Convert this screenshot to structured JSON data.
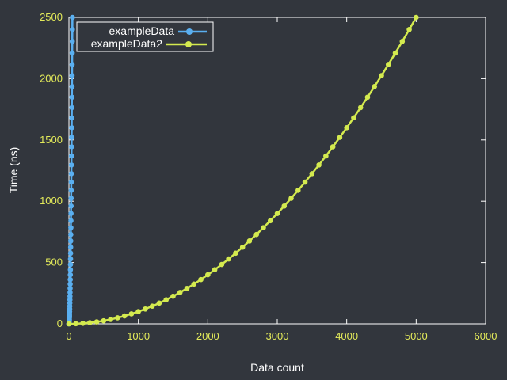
{
  "chart_data": {
    "type": "line",
    "xlabel": "Data count",
    "ylabel": "Time (ns)",
    "xlim": [
      0,
      6000
    ],
    "ylim": [
      0,
      2500
    ],
    "xticks": [
      0,
      1000,
      2000,
      3000,
      4000,
      5000,
      6000
    ],
    "yticks": [
      0,
      500,
      1000,
      1500,
      2000,
      2500
    ],
    "grid": false,
    "legend_position": "top-left",
    "series": [
      {
        "name": "exampleData",
        "color": "#5aaff0",
        "x": [
          0,
          1,
          2,
          3,
          4,
          5,
          6,
          7,
          8,
          9,
          10,
          11,
          12,
          13,
          14,
          15,
          16,
          17,
          18,
          19,
          20,
          21,
          22,
          23,
          24,
          25,
          26,
          27,
          28,
          29,
          30,
          31,
          32,
          33,
          34,
          35,
          36,
          37,
          38,
          39,
          40,
          41,
          42,
          43,
          44,
          45,
          46,
          47,
          48,
          49,
          50
        ],
        "y": [
          0,
          1,
          4,
          9,
          16,
          25,
          36,
          49,
          64,
          81,
          100,
          121,
          144,
          169,
          196,
          225,
          256,
          289,
          324,
          361,
          400,
          441,
          484,
          529,
          576,
          625,
          676,
          729,
          784,
          841,
          900,
          961,
          1024,
          1089,
          1156,
          1225,
          1296,
          1369,
          1444,
          1521,
          1600,
          1681,
          1764,
          1849,
          1936,
          2025,
          2116,
          2209,
          2304,
          2401,
          2500
        ]
      },
      {
        "name": "exampleData2",
        "color": "#d4ea4f",
        "x": [
          0,
          100,
          200,
          300,
          400,
          500,
          600,
          700,
          800,
          900,
          1000,
          1100,
          1200,
          1300,
          1400,
          1500,
          1600,
          1700,
          1800,
          1900,
          2000,
          2100,
          2200,
          2300,
          2400,
          2500,
          2600,
          2700,
          2800,
          2900,
          3000,
          3100,
          3200,
          3300,
          3400,
          3500,
          3600,
          3700,
          3800,
          3900,
          4000,
          4100,
          4200,
          4300,
          4400,
          4500,
          4600,
          4700,
          4800,
          4900,
          5000
        ],
        "y": [
          0,
          1,
          4,
          9,
          16,
          25,
          36,
          49,
          64,
          81,
          100,
          121,
          144,
          169,
          196,
          225,
          256,
          289,
          324,
          361,
          400,
          441,
          484,
          529,
          576,
          625,
          676,
          729,
          784,
          841,
          900,
          961,
          1024,
          1089,
          1156,
          1225,
          1296,
          1369,
          1444,
          1521,
          1600,
          1681,
          1764,
          1849,
          1936,
          2025,
          2116,
          2209,
          2304,
          2401,
          2500
        ]
      }
    ]
  }
}
